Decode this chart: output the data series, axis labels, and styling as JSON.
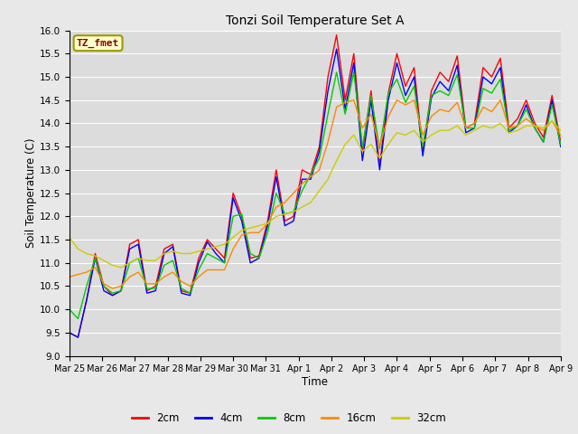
{
  "title": "Tonzi Soil Temperature Set A",
  "xlabel": "Time",
  "ylabel": "Soil Temperature (C)",
  "ylim": [
    9.0,
    16.0
  ],
  "yticks": [
    9.0,
    9.5,
    10.0,
    10.5,
    11.0,
    11.5,
    12.0,
    12.5,
    13.0,
    13.5,
    14.0,
    14.5,
    15.0,
    15.5,
    16.0
  ],
  "legend_label": "TZ_fmet",
  "series_labels": [
    "2cm",
    "4cm",
    "8cm",
    "16cm",
    "32cm"
  ],
  "series_colors": [
    "#FF0000",
    "#0000FF",
    "#00CC00",
    "#FF8800",
    "#CCCC00"
  ],
  "fig_facecolor": "#E8E8E8",
  "plot_facecolor": "#DCDCDC",
  "grid_color": "#FFFFFF",
  "xtick_labels": [
    "Mar 25",
    "Mar 26",
    "Mar 27",
    "Mar 28",
    "Mar 29",
    "Mar 30",
    "Mar 31",
    "Apr 1",
    "Apr 2",
    "Apr 3",
    "Apr 4",
    "Apr 5",
    "Apr 6",
    "Apr 7",
    "Apr 8",
    "Apr 9"
  ],
  "data_2cm": [
    9.5,
    9.4,
    10.2,
    11.2,
    10.5,
    10.3,
    10.4,
    11.4,
    11.5,
    10.4,
    10.5,
    11.3,
    11.4,
    10.4,
    10.35,
    11.1,
    11.5,
    11.3,
    11.1,
    12.5,
    12.0,
    11.1,
    11.15,
    11.9,
    13.0,
    11.9,
    12.0,
    13.0,
    12.9,
    13.5,
    15.0,
    15.9,
    14.5,
    15.5,
    13.4,
    14.7,
    13.1,
    14.65,
    15.5,
    14.8,
    15.2,
    13.4,
    14.7,
    15.1,
    14.9,
    15.45,
    13.9,
    14.0,
    15.2,
    15.0,
    15.4,
    13.9,
    14.1,
    14.5,
    14.0,
    13.7,
    14.6,
    13.6
  ],
  "data_4cm": [
    9.5,
    9.4,
    10.2,
    11.1,
    10.4,
    10.3,
    10.4,
    11.3,
    11.4,
    10.35,
    10.4,
    11.2,
    11.35,
    10.35,
    10.3,
    11.0,
    11.45,
    11.2,
    11.0,
    12.4,
    11.9,
    11.0,
    11.1,
    11.8,
    12.85,
    11.8,
    11.9,
    12.8,
    12.8,
    13.4,
    14.7,
    15.6,
    14.3,
    15.3,
    13.2,
    14.5,
    13.0,
    14.5,
    15.3,
    14.6,
    15.0,
    13.3,
    14.55,
    14.9,
    14.7,
    15.25,
    13.8,
    13.9,
    15.0,
    14.85,
    15.2,
    13.8,
    13.95,
    14.4,
    13.9,
    13.6,
    14.5,
    13.5
  ],
  "data_8cm": [
    10.0,
    9.8,
    10.5,
    11.1,
    10.5,
    10.35,
    10.4,
    11.0,
    11.1,
    10.45,
    10.45,
    10.95,
    11.05,
    10.45,
    10.35,
    10.85,
    11.2,
    11.1,
    11.0,
    12.0,
    12.05,
    11.2,
    11.1,
    11.65,
    12.5,
    12.05,
    12.1,
    12.55,
    12.9,
    13.25,
    14.2,
    15.1,
    14.2,
    15.1,
    13.5,
    14.6,
    13.45,
    14.65,
    14.95,
    14.45,
    14.8,
    13.5,
    14.6,
    14.7,
    14.6,
    15.05,
    13.9,
    13.9,
    14.75,
    14.65,
    14.95,
    13.85,
    13.95,
    14.3,
    13.9,
    13.6,
    14.4,
    13.55
  ],
  "data_16cm": [
    10.7,
    10.75,
    10.8,
    10.9,
    10.55,
    10.45,
    10.5,
    10.7,
    10.8,
    10.55,
    10.55,
    10.7,
    10.8,
    10.6,
    10.5,
    10.7,
    10.85,
    10.85,
    10.85,
    11.3,
    11.6,
    11.65,
    11.65,
    11.85,
    12.2,
    12.3,
    12.5,
    12.7,
    12.85,
    13.0,
    13.6,
    14.35,
    14.45,
    14.5,
    13.9,
    14.2,
    13.5,
    14.15,
    14.5,
    14.4,
    14.5,
    13.75,
    14.15,
    14.3,
    14.25,
    14.45,
    13.9,
    14.0,
    14.35,
    14.25,
    14.5,
    13.9,
    13.95,
    14.1,
    13.95,
    13.85,
    14.05,
    13.75
  ],
  "data_32cm": [
    11.55,
    11.3,
    11.2,
    11.15,
    11.05,
    10.95,
    10.9,
    11.0,
    11.1,
    11.05,
    11.05,
    11.2,
    11.25,
    11.2,
    11.2,
    11.25,
    11.3,
    11.35,
    11.4,
    11.55,
    11.7,
    11.75,
    11.8,
    11.85,
    12.0,
    12.05,
    12.1,
    12.2,
    12.3,
    12.55,
    12.8,
    13.2,
    13.55,
    13.75,
    13.4,
    13.55,
    13.25,
    13.55,
    13.8,
    13.75,
    13.85,
    13.6,
    13.75,
    13.85,
    13.85,
    13.95,
    13.75,
    13.85,
    13.95,
    13.9,
    14.0,
    13.8,
    13.85,
    13.95,
    13.95,
    13.9,
    14.05,
    13.85
  ]
}
